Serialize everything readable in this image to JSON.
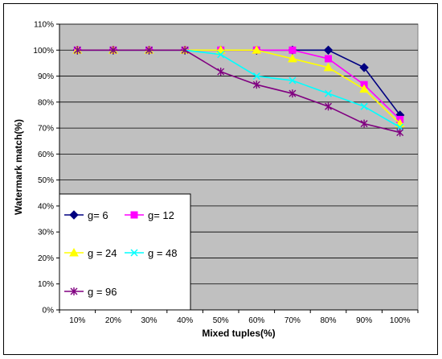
{
  "chart_data": {
    "type": "line",
    "xlabel": "Mixed tuples(%)",
    "ylabel": "Watermark match(%)",
    "categories": [
      "10%",
      "20%",
      "30%",
      "40%",
      "50%",
      "60%",
      "70%",
      "80%",
      "90%",
      "100%"
    ],
    "y_ticks": [
      "0%",
      "10%",
      "20%",
      "30%",
      "40%",
      "50%",
      "60%",
      "70%",
      "80%",
      "90%",
      "100%",
      "110%"
    ],
    "ylim": [
      0,
      110
    ],
    "grid": "horizontal",
    "legend_position": "bottom-left",
    "series": [
      {
        "name": "g= 6",
        "color": "#000080",
        "marker": "diamond",
        "values": [
          100,
          100,
          100,
          100,
          100,
          100,
          100,
          100,
          93.3,
          75
        ]
      },
      {
        "name": "g= 12",
        "color": "#ff00ff",
        "marker": "square",
        "values": [
          100,
          100,
          100,
          100,
          100,
          100,
          100,
          96.7,
          86.7,
          73.3
        ]
      },
      {
        "name": "g = 24",
        "color": "#ffff00",
        "marker": "triangle",
        "values": [
          100,
          100,
          100,
          100,
          100,
          100,
          96.7,
          93.3,
          85,
          71.7
        ]
      },
      {
        "name": "g = 48",
        "color": "#00ffff",
        "marker": "x",
        "values": [
          100,
          100,
          100,
          100,
          98.3,
          90,
          88.3,
          83.3,
          78.3,
          70.3
        ]
      },
      {
        "name": "g = 96",
        "color": "#800080",
        "marker": "star",
        "values": [
          100,
          100,
          100,
          100,
          91.7,
          86.7,
          83.3,
          78.3,
          71.7,
          68.3
        ]
      }
    ]
  }
}
